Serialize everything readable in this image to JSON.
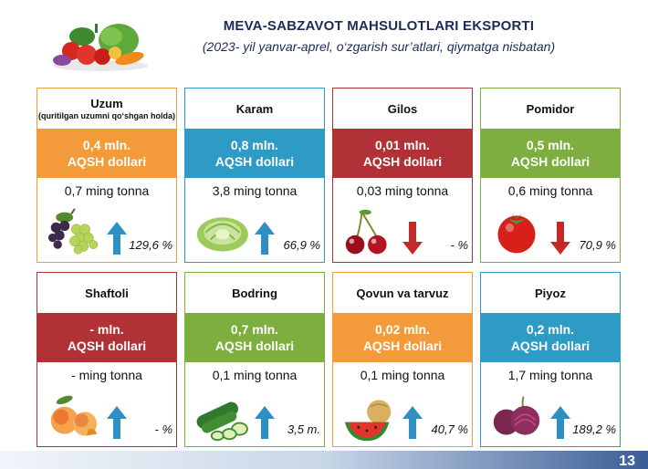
{
  "header": {
    "title": "MEVA-SABZAVOT MAHSULOTLARI EKSPORTI",
    "subtitle": "(2023- yil yanvar-aprel, o‘zgarish sur’atlari, qiymatga nisbatan)"
  },
  "colors": {
    "orange": "#f39a3a",
    "blue": "#2e9ac6",
    "red": "#b03236",
    "green": "#7dae3f",
    "arrow_up": "#2e8fc5",
    "arrow_down": "#c22a2a"
  },
  "cards": [
    {
      "name": "Uzum",
      "note": "(quritilgan uzumni qo‘shgan holda)",
      "value_line1": "0,4 mln.",
      "value_line2": "AQSH dollari",
      "volume": "0,7 ming tonna",
      "change": "129,6 %",
      "direction": "up",
      "color": "orange",
      "border": "orange",
      "icon": "grapes-icon"
    },
    {
      "name": "Karam",
      "note": "",
      "value_line1": "0,8 mln.",
      "value_line2": "AQSH dollari",
      "volume": "3,8 ming tonna",
      "change": "66,9 %",
      "direction": "up",
      "color": "blue",
      "border": "blue",
      "icon": "cabbage-icon"
    },
    {
      "name": "Gilos",
      "note": "",
      "value_line1": "0,01 mln.",
      "value_line2": "AQSH dollari",
      "volume": "0,03 ming tonna",
      "change": "- %",
      "direction": "down",
      "color": "red",
      "border": "red",
      "icon": "cherry-icon"
    },
    {
      "name": "Pomidor",
      "note": "",
      "value_line1": "0,5 mln.",
      "value_line2": "AQSH dollari",
      "volume": "0,6 ming tonna",
      "change": "70,9 %",
      "direction": "down",
      "color": "green",
      "border": "green",
      "icon": "tomato-icon"
    },
    {
      "name": "Shaftoli",
      "note": "",
      "value_line1": "- mln.",
      "value_line2": "AQSH dollari",
      "volume": "- ming tonna",
      "change": "- %",
      "direction": "up",
      "color": "red",
      "border": "red",
      "icon": "peach-icon"
    },
    {
      "name": "Bodring",
      "note": "",
      "value_line1": "0,7 mln.",
      "value_line2": "AQSH dollari",
      "volume": "0,1 ming tonna",
      "change": "3,5 m.",
      "direction": "up",
      "color": "green",
      "border": "green",
      "icon": "cucumber-icon"
    },
    {
      "name": "Qovun va tarvuz",
      "note": "",
      "value_line1": "0,02 mln.",
      "value_line2": "AQSH dollari",
      "volume": "0,1 ming tonna",
      "change": "40,7 %",
      "direction": "up",
      "color": "orange",
      "border": "orange",
      "icon": "melon-icon"
    },
    {
      "name": "Piyoz",
      "note": "",
      "value_line1": "0,2 mln.",
      "value_line2": "AQSH dollari",
      "volume": "1,7 ming tonna",
      "change": "189,2 %",
      "direction": "up",
      "color": "blue",
      "border": "blue",
      "icon": "onion-icon"
    }
  ]
}
